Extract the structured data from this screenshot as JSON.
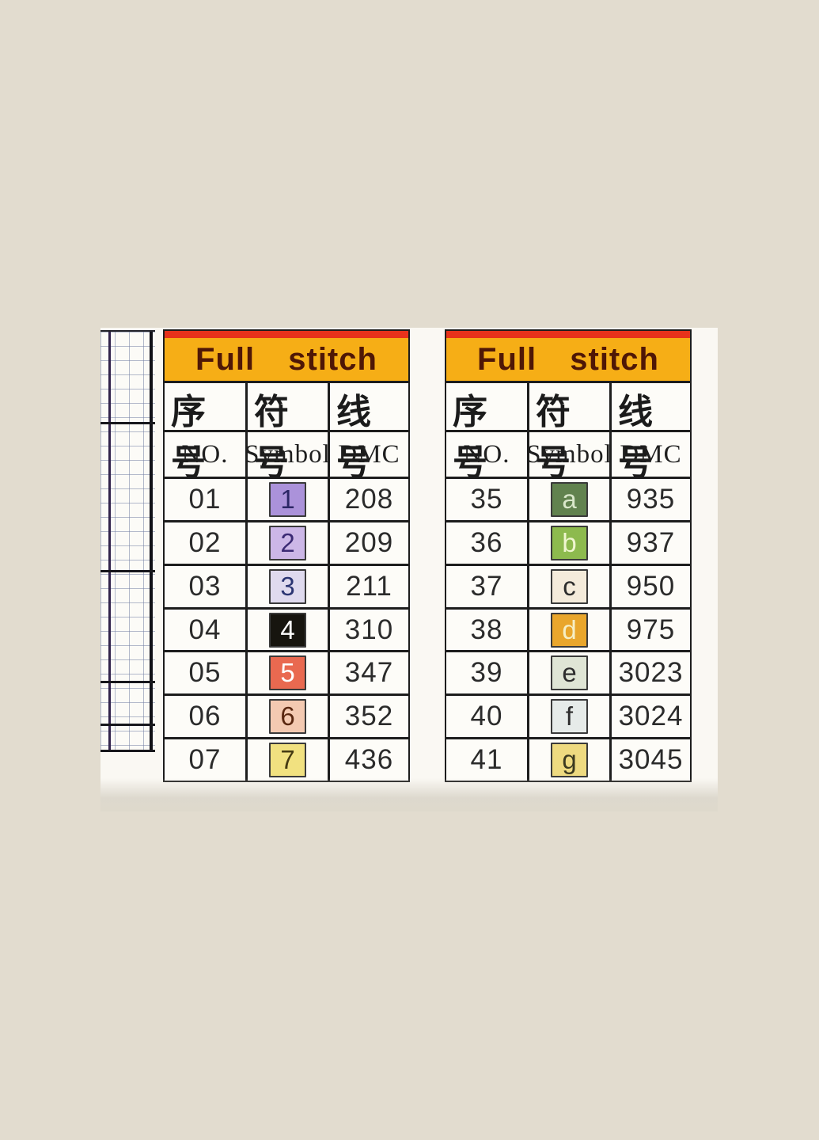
{
  "page": {
    "background_color": "#e2dccf",
    "photo_background_color": "#faf8f3"
  },
  "accents": {
    "red_strip_color": "#e7321b",
    "orange_band_color": "#f6ae16",
    "title_text_color": "#4f1706",
    "table_border_color": "#1d1d1d"
  },
  "tables": [
    {
      "title": "Full  stitch",
      "cjk_headers": [
        "序号",
        "符号",
        "线号"
      ],
      "en_headers": [
        "NO.",
        "Symbol",
        "DMC"
      ],
      "rows": [
        {
          "no": "01",
          "symbol": "1",
          "dmc": "208",
          "symbol_bg": "#ab92da",
          "symbol_fg": "#2c2766"
        },
        {
          "no": "02",
          "symbol": "2",
          "dmc": "209",
          "symbol_bg": "#ccb7e7",
          "symbol_fg": "#3b2a74"
        },
        {
          "no": "03",
          "symbol": "3",
          "dmc": "211",
          "symbol_bg": "#dfdaee",
          "symbol_fg": "#2b3572"
        },
        {
          "no": "04",
          "symbol": "4",
          "dmc": "310",
          "symbol_bg": "#17150f",
          "symbol_fg": "#ffffff"
        },
        {
          "no": "05",
          "symbol": "5",
          "dmc": "347",
          "symbol_bg": "#e96950",
          "symbol_fg": "#ffffff"
        },
        {
          "no": "06",
          "symbol": "6",
          "dmc": "352",
          "symbol_bg": "#f3c9b1",
          "symbol_fg": "#59260f"
        },
        {
          "no": "07",
          "symbol": "7",
          "dmc": "436",
          "symbol_bg": "#f1e180",
          "symbol_fg": "#453a12"
        }
      ]
    },
    {
      "title": "Full  stitch",
      "cjk_headers": [
        "序号",
        "符号",
        "线号"
      ],
      "en_headers": [
        "NO.",
        "Symbol",
        "DMC"
      ],
      "rows": [
        {
          "no": "35",
          "symbol": "a",
          "dmc": "935",
          "symbol_bg": "#61824f",
          "symbol_fg": "#d9e7cb"
        },
        {
          "no": "36",
          "symbol": "b",
          "dmc": "937",
          "symbol_bg": "#8dba4e",
          "symbol_fg": "#eff6cf"
        },
        {
          "no": "37",
          "symbol": "c",
          "dmc": "950",
          "symbol_bg": "#f4ebdb",
          "symbol_fg": "#2d2d2d"
        },
        {
          "no": "38",
          "symbol": "d",
          "dmc": "975",
          "symbol_bg": "#e9a62c",
          "symbol_fg": "#f6efc5"
        },
        {
          "no": "39",
          "symbol": "e",
          "dmc": "3023",
          "symbol_bg": "#dfe5d5",
          "symbol_fg": "#2d2d2d"
        },
        {
          "no": "40",
          "symbol": "f",
          "dmc": "3024",
          "symbol_bg": "#e6ebe9",
          "symbol_fg": "#2d2d2d"
        },
        {
          "no": "41",
          "symbol": "g",
          "dmc": "3045",
          "symbol_bg": "#eeda80",
          "symbol_fg": "#3c3a20"
        }
      ]
    }
  ]
}
